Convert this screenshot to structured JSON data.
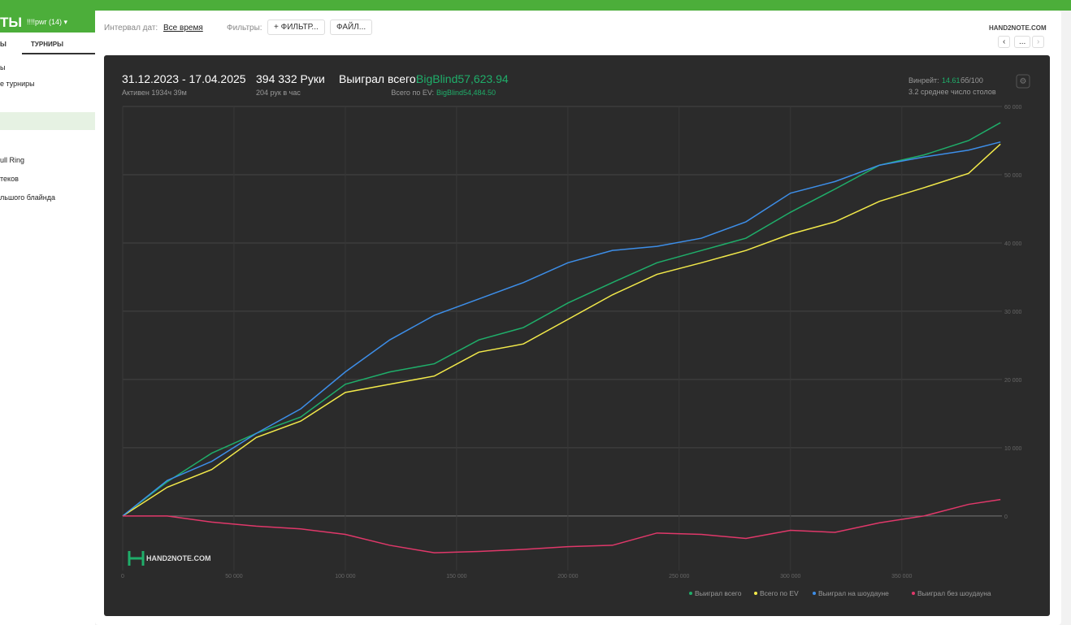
{
  "ui": {
    "topbar": {
      "title": "ТЫ",
      "player": "!!!!pwr (14) ▾"
    },
    "sidebar": {
      "tabs": [
        "Ы",
        "ТУРНИРЫ"
      ],
      "items": [
        "ы",
        "е турниры",
        "ull Ring",
        "теков",
        "льшого блайнда"
      ]
    },
    "toolbar": {
      "date_label": "Интервал дат:",
      "date_value": "Все время",
      "filters_label": "Фильтры:",
      "filter_button": "+ ФИЛЬТР...",
      "file_button": "ФАЙЛ...",
      "logo": "HAND2NOTE.COM",
      "nav_more": "..."
    },
    "stats": {
      "period": "31.12.2023 - 17.04.2025",
      "active": "Активен 1934ч 39м",
      "hands": "394 332 Руки",
      "hands_per_hour": "204 рук в час",
      "won_label": "Выиграл всего:",
      "won_value": "BigBlind57,623.94",
      "ev_label": "Всего по EV:",
      "ev_value": "BigBlind54,484.50",
      "winrate_label": "Винрейт:",
      "winrate_value": "14.61",
      "winrate_unit": "бб/100",
      "tables": "3.2 среднее число столов"
    },
    "watermark": "HAND2NOTE.COM"
  },
  "chart_data": {
    "type": "line",
    "x": [
      0,
      20000,
      40000,
      60000,
      80000,
      100000,
      120000,
      140000,
      160000,
      180000,
      200000,
      220000,
      240000,
      260000,
      280000,
      300000,
      320000,
      340000,
      360000,
      380000,
      394332
    ],
    "series": [
      {
        "name": "Выиграл всего",
        "color": "#1fae6a",
        "values": [
          0,
          5000,
          9200,
          12100,
          14500,
          19300,
          21100,
          22300,
          25800,
          27600,
          31200,
          34200,
          37100,
          38900,
          40700,
          44500,
          47900,
          51400,
          52900,
          55000,
          57624
        ]
      },
      {
        "name": "Всего по EV",
        "color": "#f2e94a",
        "values": [
          0,
          4200,
          6800,
          11500,
          13900,
          18100,
          19300,
          20500,
          24000,
          25200,
          28800,
          32400,
          35400,
          37100,
          38900,
          41300,
          43100,
          46100,
          48100,
          50200,
          54485
        ]
      },
      {
        "name": "Выиграл на шоудауне",
        "color": "#3d8ee8",
        "values": [
          0,
          5200,
          8000,
          12100,
          15700,
          21100,
          25800,
          29400,
          31800,
          34200,
          37100,
          38900,
          39500,
          40700,
          43100,
          47300,
          49000,
          51400,
          52600,
          53600,
          54800
        ]
      },
      {
        "name": "Выиграл без шоудауна",
        "color": "#e0386a",
        "values": [
          0,
          0,
          -900,
          -1500,
          -1900,
          -2700,
          -4300,
          -5400,
          -5200,
          -4900,
          -4500,
          -4300,
          -2500,
          -2700,
          -3300,
          -2100,
          -2400,
          -1000,
          0,
          1700,
          2400
        ]
      }
    ],
    "xlim": [
      0,
      395000
    ],
    "ylim": [
      -8000,
      60000
    ],
    "xticks": [
      0,
      {
        "value": 50000,
        "label": "50 000"
      },
      {
        "value": 100000,
        "label": "100 000"
      },
      {
        "value": 150000,
        "label": "150 000"
      },
      {
        "value": 200000,
        "label": "200 000"
      },
      {
        "value": 250000,
        "label": "250 000"
      },
      {
        "value": 300000,
        "label": "300 000"
      },
      {
        "value": 350000,
        "label": "350 000"
      }
    ],
    "yticks": [
      0,
      {
        "value": 10000,
        "label": "10 000"
      },
      {
        "value": 20000,
        "label": "20 000"
      },
      {
        "value": 30000,
        "label": "30 000"
      },
      {
        "value": 40000,
        "label": "40 000"
      },
      {
        "value": 50000,
        "label": "50 000"
      },
      {
        "value": 60000,
        "label": "60 000"
      }
    ],
    "grid": true
  }
}
